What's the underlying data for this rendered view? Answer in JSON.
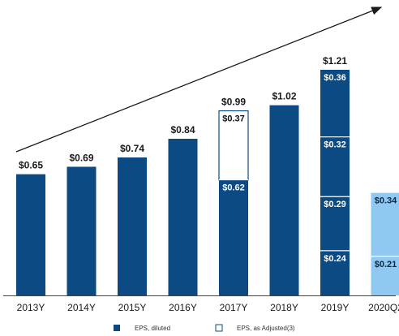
{
  "chart_data": {
    "type": "bar",
    "stacked": true,
    "categories": [
      "2013Y",
      "2014Y",
      "2015Y",
      "2016Y",
      "2017Y",
      "2018Y",
      "2019Y",
      "2020Q2"
    ],
    "bars": [
      {
        "category": "2013Y",
        "total_label": "$0.65",
        "segments": [
          {
            "value": 0.65,
            "label": "",
            "style": "diluted"
          }
        ]
      },
      {
        "category": "2014Y",
        "total_label": "$0.69",
        "segments": [
          {
            "value": 0.69,
            "label": "",
            "style": "diluted"
          }
        ]
      },
      {
        "category": "2015Y",
        "total_label": "$0.74",
        "segments": [
          {
            "value": 0.74,
            "label": "",
            "style": "diluted"
          }
        ]
      },
      {
        "category": "2016Y",
        "total_label": "$0.84",
        "segments": [
          {
            "value": 0.84,
            "label": "",
            "style": "diluted"
          }
        ]
      },
      {
        "category": "2017Y",
        "total_label": "$0.99",
        "segments": [
          {
            "value": 0.62,
            "label": "$0.62",
            "style": "diluted"
          },
          {
            "value": 0.37,
            "label": "$0.37",
            "style": "adjusted"
          }
        ]
      },
      {
        "category": "2018Y",
        "total_label": "$1.02",
        "segments": [
          {
            "value": 1.02,
            "label": "",
            "style": "diluted"
          }
        ]
      },
      {
        "category": "2019Y",
        "total_label": "$1.21",
        "segments": [
          {
            "value": 0.24,
            "label": "$0.24",
            "style": "diluted"
          },
          {
            "value": 0.29,
            "label": "$0.29",
            "style": "diluted"
          },
          {
            "value": 0.32,
            "label": "$0.32",
            "style": "diluted"
          },
          {
            "value": 0.36,
            "label": "$0.36",
            "style": "diluted"
          }
        ]
      },
      {
        "category": "2020Q2",
        "total_label": "",
        "segments": [
          {
            "value": 0.21,
            "label": "$0.21",
            "style": "light"
          },
          {
            "value": 0.34,
            "label": "$0.34",
            "style": "light"
          }
        ]
      }
    ],
    "legend": [
      {
        "label": "EPS, diluted",
        "style": "diluted"
      },
      {
        "label": "EPS, as Adjusted(3)",
        "style": "adjusted"
      }
    ],
    "legend_position": "bottom",
    "trend_arrow": true,
    "grid": false,
    "ylim": [
      0,
      1.3
    ],
    "colors": {
      "diluted": "#0b4a82",
      "light": "#8fc9f2",
      "adjusted_fill": "#ffffff",
      "adjusted_border": "#0b4a82",
      "axis": "#444444",
      "arrow": "#1a1a1a"
    }
  }
}
